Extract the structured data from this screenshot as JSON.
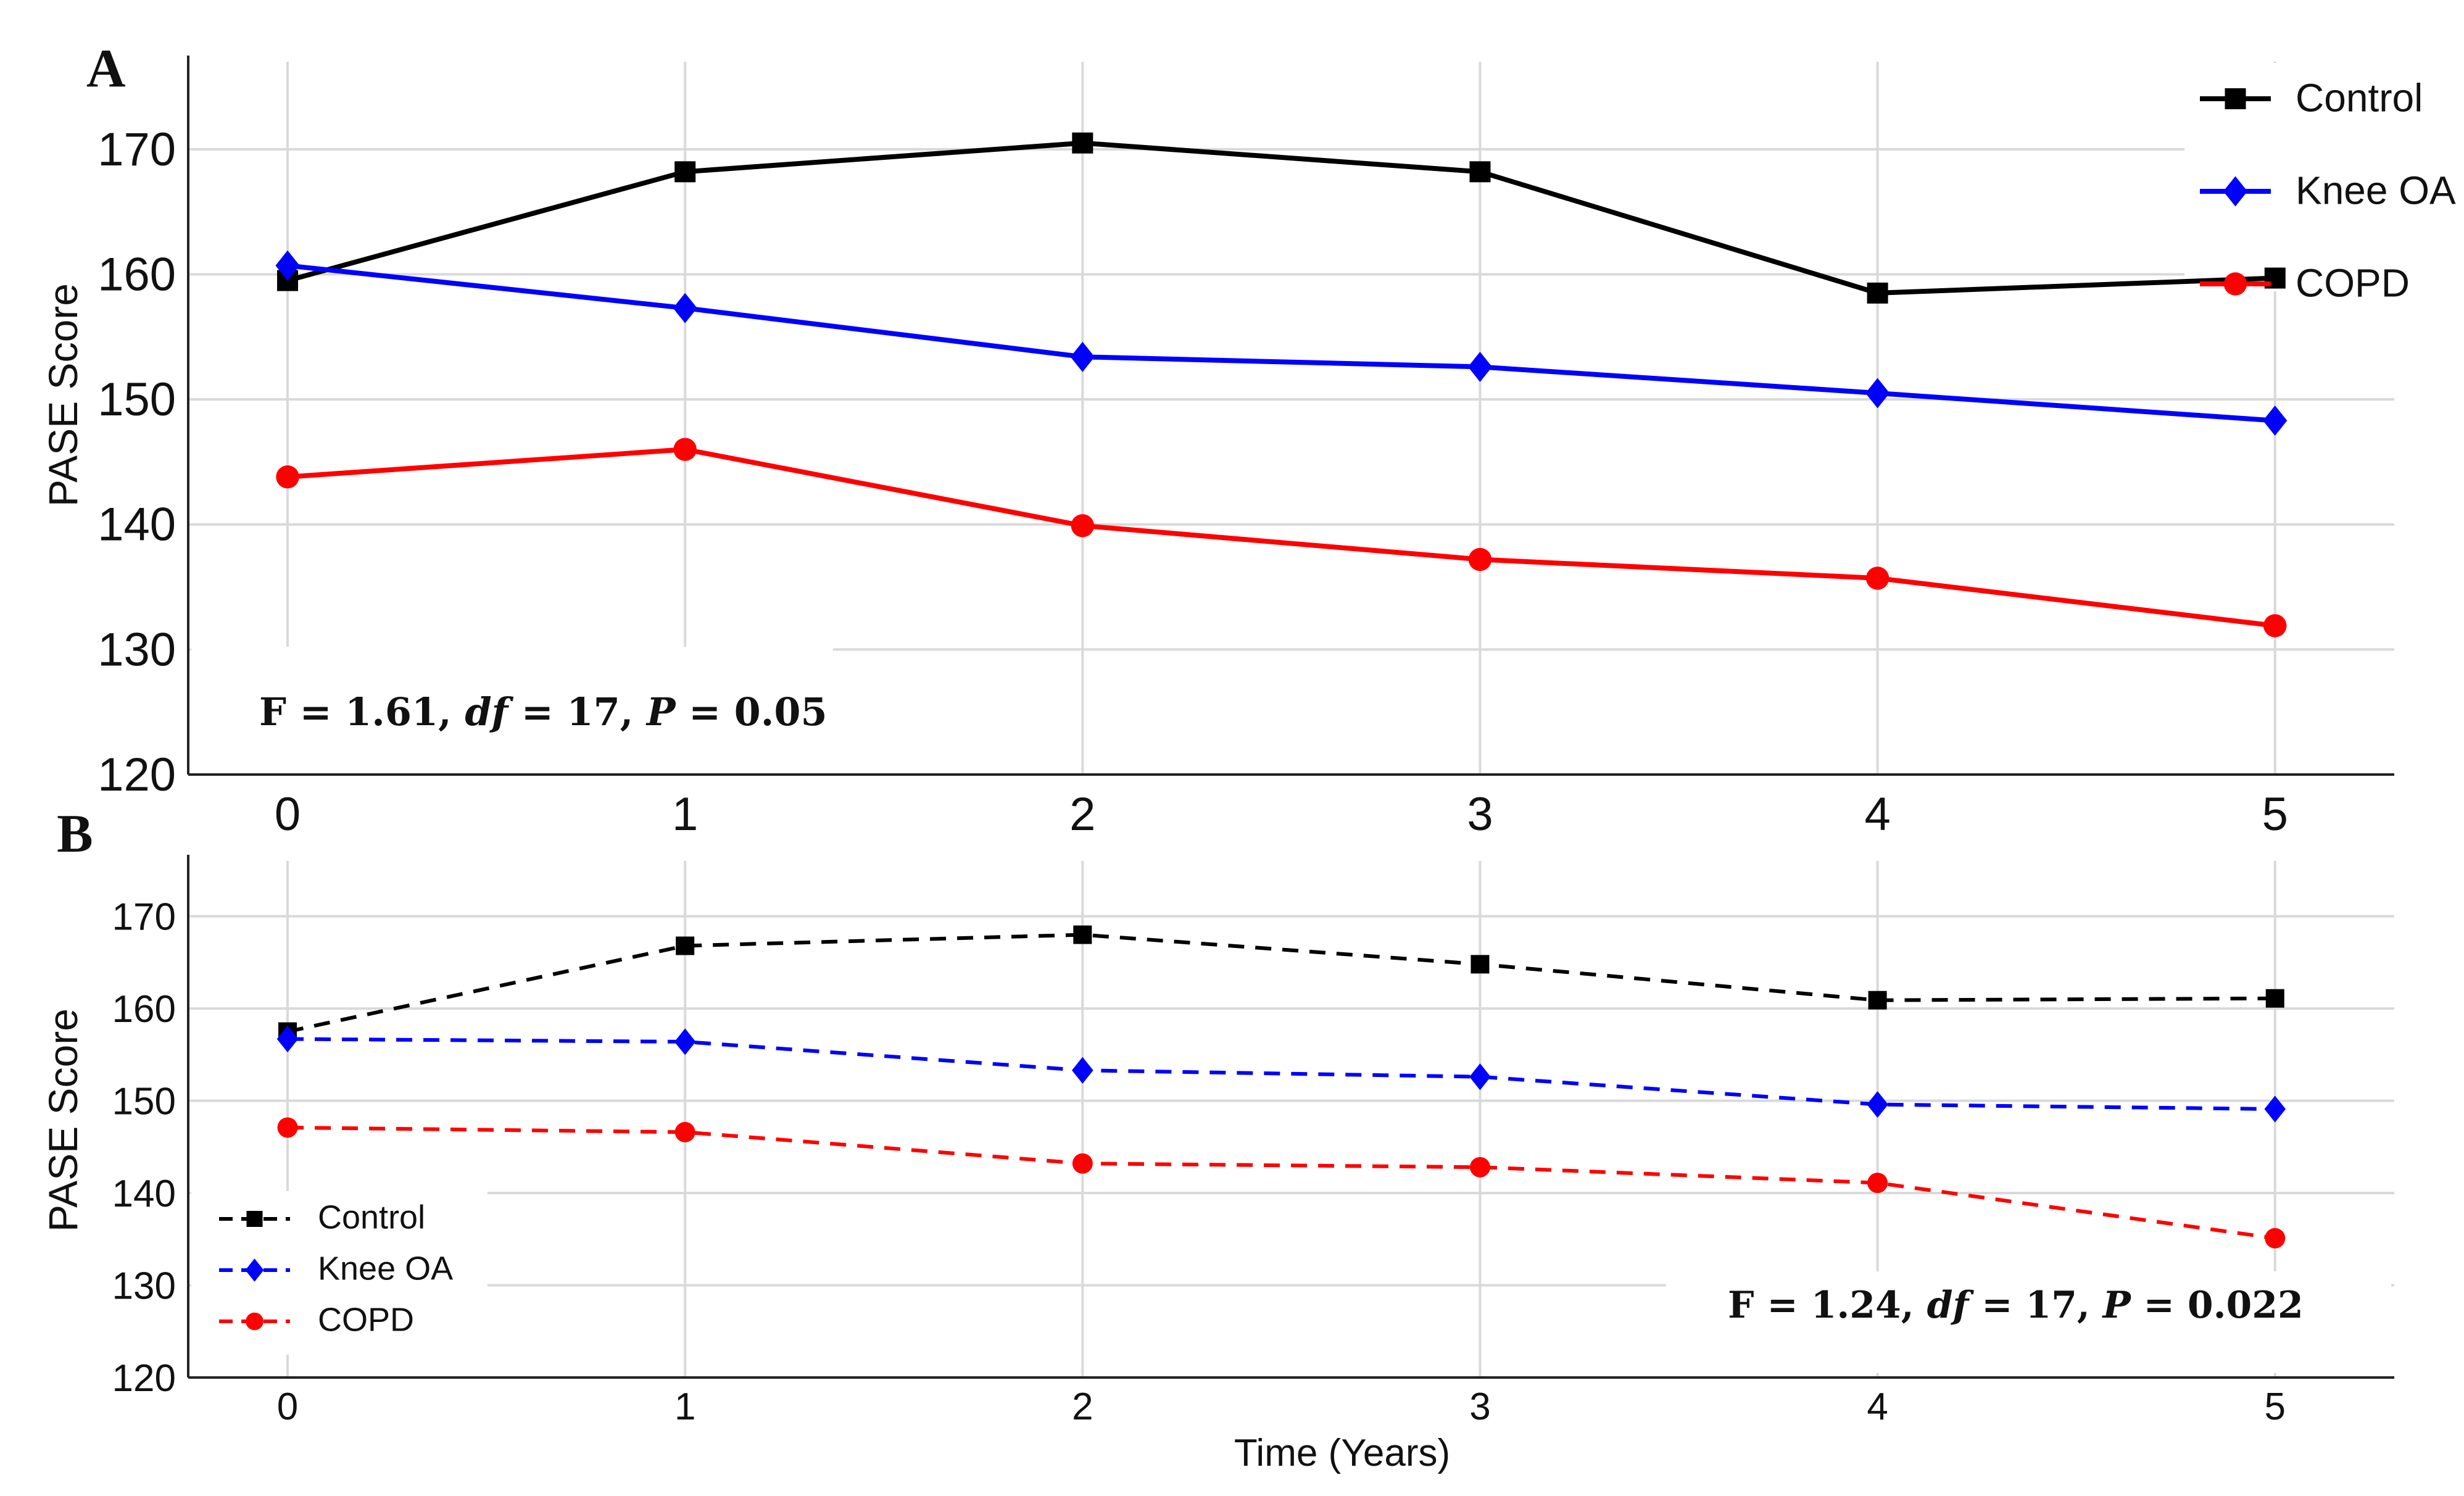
{
  "colors": {
    "control": "#000000",
    "knee_oa": "#0000ff",
    "copd": "#ff0000",
    "grid": "#d9d9d9"
  },
  "chart_data": [
    {
      "panel": "A",
      "type": "line",
      "line_style": "solid",
      "x": [
        0,
        1,
        2,
        3,
        4,
        5
      ],
      "xticks": [
        "0",
        "1",
        "2",
        "3",
        "4",
        "5"
      ],
      "yticks": [
        "120",
        "130",
        "140",
        "150",
        "160",
        "170"
      ],
      "xlim": [
        -0.25,
        5.3
      ],
      "ylim": [
        120,
        177
      ],
      "xlabel": "",
      "ylabel": "PASE Score",
      "grid": true,
      "legend_position": "top-right",
      "annotation": {
        "prefix": "F = 1.61, ",
        "df_label": "df",
        "df_value": " = 17, ",
        "p_label": "P",
        "p_value": " = 0.05"
      },
      "series": [
        {
          "name": "Control",
          "marker": "square",
          "color": "#000000",
          "values": [
            159.5,
            168.2,
            170.5,
            168.2,
            158.5,
            159.7
          ]
        },
        {
          "name": "Knee OA",
          "marker": "diamond",
          "color": "#0000ff",
          "values": [
            160.7,
            157.3,
            153.4,
            152.6,
            150.5,
            148.3
          ]
        },
        {
          "name": "COPD",
          "marker": "circle",
          "color": "#ff0000",
          "values": [
            143.8,
            146.0,
            139.9,
            137.2,
            135.7,
            131.9
          ]
        }
      ]
    },
    {
      "panel": "B",
      "type": "line",
      "line_style": "dashed",
      "x": [
        0,
        1,
        2,
        3,
        4,
        5
      ],
      "xticks": [
        "0",
        "1",
        "2",
        "3",
        "4",
        "5"
      ],
      "yticks": [
        "120",
        "130",
        "140",
        "150",
        "160",
        "170"
      ],
      "xlim": [
        -0.25,
        5.3
      ],
      "ylim": [
        120,
        176
      ],
      "xlabel": "Time (Years)",
      "ylabel": "PASE Score",
      "grid": true,
      "legend_position": "bottom-left",
      "annotation": {
        "prefix": "F = 1.24, ",
        "df_label": "df",
        "df_value": " = 17, ",
        "p_label": "P",
        "p_value": " = 0.022"
      },
      "series": [
        {
          "name": "Control",
          "marker": "square",
          "color": "#000000",
          "values": [
            157.5,
            166.8,
            168.0,
            164.8,
            160.9,
            161.1
          ]
        },
        {
          "name": "Knee OA",
          "marker": "diamond",
          "color": "#0000ff",
          "values": [
            156.7,
            156.4,
            153.3,
            152.6,
            149.6,
            149.1
          ]
        },
        {
          "name": "COPD",
          "marker": "circle",
          "color": "#ff0000",
          "values": [
            147.1,
            146.6,
            143.2,
            142.8,
            141.1,
            135.1
          ]
        }
      ]
    }
  ]
}
